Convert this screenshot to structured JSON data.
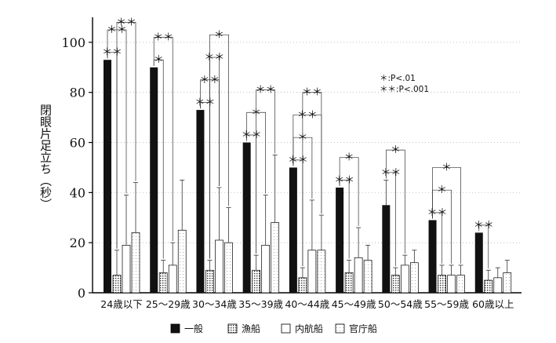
{
  "chart_data": {
    "type": "bar",
    "title": "",
    "xlabel": "",
    "ylabel": "閉眼片足立ち（秒）",
    "ylim": [
      0,
      110
    ],
    "yticks": [
      0,
      20,
      40,
      60,
      80,
      100
    ],
    "grid": "horizontal-dotted",
    "legend_position": "bottom",
    "categories": [
      "24歳以下",
      "25～29歳",
      "30～34歳",
      "35～39歳",
      "40～44歳",
      "45～49歳",
      "50～54歳",
      "55～59歳",
      "60歳以上"
    ],
    "series": [
      {
        "name": "一般",
        "pattern": "solid",
        "values": [
          93,
          90,
          73,
          60,
          50,
          42,
          35,
          29,
          24
        ],
        "errors": [
          0,
          0,
          0,
          0,
          0,
          0,
          10,
          0,
          0
        ]
      },
      {
        "name": "漁船",
        "pattern": "dotted",
        "values": [
          7,
          8,
          9,
          9,
          6,
          8,
          7,
          7,
          5
        ],
        "errors": [
          10,
          5,
          4,
          6,
          4,
          5,
          3,
          4,
          4
        ]
      },
      {
        "name": "内航船",
        "pattern": "plain",
        "values": [
          19,
          11,
          21,
          19,
          17,
          14,
          11,
          7,
          6
        ],
        "errors": [
          20,
          9,
          21,
          20,
          20,
          12,
          4,
          4,
          4
        ]
      },
      {
        "name": "官庁船",
        "pattern": "light",
        "values": [
          24,
          25,
          20,
          28,
          17,
          13,
          12,
          7,
          8
        ],
        "errors": [
          20,
          20,
          14,
          27,
          14,
          6,
          5,
          4,
          5
        ]
      }
    ],
    "significance_legend": [
      "＊:P<.01",
      "＊＊:P<.001"
    ],
    "annotations": [
      {
        "group": 0,
        "from": 0,
        "to": 1,
        "label": "＊＊",
        "level": 0
      },
      {
        "group": 0,
        "from": 0,
        "to": 2,
        "label": "＊＊",
        "level": 1
      },
      {
        "group": 0,
        "from": 1,
        "to": 3,
        "label": "＊＊",
        "level": 2
      },
      {
        "group": 1,
        "from": 0,
        "to": 1,
        "label": "＊",
        "level": 0
      },
      {
        "group": 1,
        "from": 0,
        "to": 2,
        "label": "＊＊",
        "level": 1
      },
      {
        "group": 2,
        "from": 0,
        "to": 1,
        "label": "＊＊",
        "level": 0
      },
      {
        "group": 2,
        "from": 0,
        "to": 2,
        "label": "＊＊",
        "level": 1
      },
      {
        "group": 2,
        "from": 1,
        "to": 2,
        "label": "＊＊",
        "level": 2
      },
      {
        "group": 2,
        "from": 1,
        "to": 3,
        "label": "＊",
        "level": 3
      },
      {
        "group": 3,
        "from": 0,
        "to": 1,
        "label": "＊＊",
        "level": 0
      },
      {
        "group": 3,
        "from": 0,
        "to": 2,
        "label": "＊",
        "level": 1
      },
      {
        "group": 3,
        "from": 1,
        "to": 3,
        "label": "＊＊",
        "level": 2
      },
      {
        "group": 4,
        "from": 0,
        "to": 1,
        "label": "＊＊",
        "level": 0
      },
      {
        "group": 4,
        "from": 0,
        "to": 2,
        "label": "＊",
        "level": 1
      },
      {
        "group": 4,
        "from": 0,
        "to": 3,
        "label": "＊＊",
        "level": 2
      },
      {
        "group": 4,
        "from": 1,
        "to": 3,
        "label": "＊＊",
        "level": 3
      },
      {
        "group": 5,
        "from": 0,
        "to": 1,
        "label": "＊＊",
        "level": 0
      },
      {
        "group": 5,
        "from": 0,
        "to": 2,
        "label": "＊",
        "level": 1
      },
      {
        "group": 6,
        "from": 0,
        "to": 1,
        "label": "＊＊",
        "level": 0
      },
      {
        "group": 6,
        "from": 0,
        "to": 2,
        "label": "＊",
        "level": 1
      },
      {
        "group": 7,
        "from": 0,
        "to": 1,
        "label": "＊＊",
        "level": 0
      },
      {
        "group": 7,
        "from": 0,
        "to": 2,
        "label": "＊",
        "level": 1
      },
      {
        "group": 7,
        "from": 0,
        "to": 3,
        "label": "＊",
        "level": 2
      },
      {
        "group": 8,
        "from": 0,
        "to": 1,
        "label": "＊＊",
        "level": 0
      }
    ]
  }
}
